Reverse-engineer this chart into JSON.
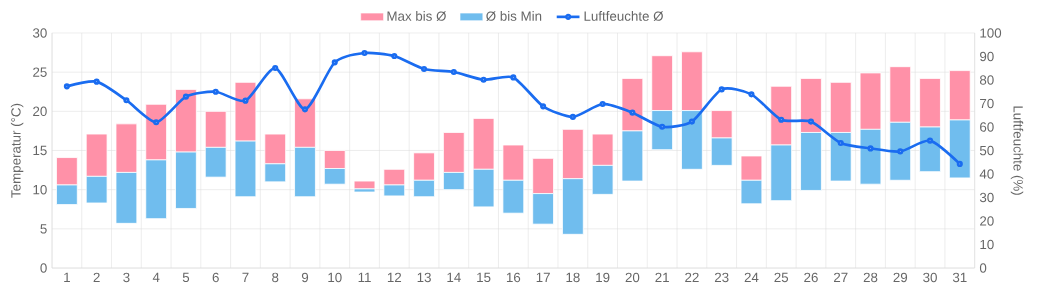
{
  "chart_data": {
    "type": "bar",
    "xlabel": null,
    "ylabel": "Temperatur (°C)",
    "y2label": "Luftfeuchte (%)",
    "categories": [
      "1",
      "2",
      "3",
      "4",
      "5",
      "6",
      "7",
      "8",
      "9",
      "10",
      "11",
      "12",
      "13",
      "14",
      "15",
      "16",
      "17",
      "18",
      "19",
      "20",
      "21",
      "22",
      "23",
      "24",
      "25",
      "26",
      "27",
      "28",
      "29",
      "30",
      "31"
    ],
    "series": [
      {
        "name": "Max bis Ø",
        "color": "#ff91a8",
        "base": [
          10.6,
          11.7,
          12.2,
          13.8,
          14.8,
          15.4,
          16.2,
          13.3,
          15.4,
          12.7,
          10.1,
          10.6,
          11.2,
          12.2,
          12.6,
          11.2,
          9.5,
          11.4,
          13.1,
          17.5,
          20.1,
          20.1,
          16.6,
          11.2,
          15.7,
          17.3,
          17.3,
          17.7,
          18.6,
          18.0,
          18.9
        ],
        "values": [
          3.5,
          5.4,
          6.2,
          7.1,
          8.0,
          4.6,
          7.5,
          3.8,
          6.2,
          2.3,
          1.0,
          2.0,
          3.5,
          5.1,
          6.5,
          4.5,
          4.5,
          6.3,
          4.0,
          6.7,
          7.0,
          7.5,
          3.5,
          3.1,
          7.5,
          6.9,
          6.4,
          7.2,
          7.1,
          6.2,
          6.3
        ]
      },
      {
        "name": "Ø bis Min",
        "color": "#70bdee",
        "base": [
          8.1,
          8.3,
          5.7,
          6.3,
          7.6,
          11.6,
          9.1,
          11.0,
          9.1,
          10.7,
          9.7,
          9.2,
          9.1,
          10.0,
          7.8,
          7.0,
          5.6,
          4.3,
          9.4,
          11.1,
          15.1,
          12.6,
          13.1,
          8.2,
          8.6,
          9.9,
          11.1,
          10.7,
          11.2,
          12.3,
          11.5
        ],
        "values": [
          2.5,
          3.4,
          6.5,
          7.5,
          7.2,
          3.8,
          7.1,
          2.3,
          6.3,
          2.0,
          0.4,
          1.4,
          2.1,
          2.2,
          4.8,
          4.2,
          3.9,
          7.1,
          3.7,
          6.4,
          5.0,
          7.5,
          3.5,
          3.0,
          7.1,
          7.4,
          6.2,
          7.0,
          7.4,
          5.7,
          7.4
        ]
      },
      {
        "name": "Luftfeuchte Ø",
        "type": "line",
        "axis": "y2",
        "color": "#1a6cf0",
        "marker": "circle",
        "line_style": "solid",
        "values": [
          77.3,
          79.3,
          71.4,
          62,
          72.9,
          75,
          71.2,
          85.1,
          67.5,
          87.5,
          91.5,
          90.2,
          84.7,
          83.4,
          80.1,
          81.1,
          68.8,
          64.3,
          69.8,
          66.1,
          60.1,
          62.3,
          76,
          73.9,
          63.1,
          62.3,
          53.2,
          50.9,
          49.6,
          54.2,
          44.3
        ]
      }
    ],
    "ylim": [
      0,
      30
    ],
    "yticks": [
      0,
      5,
      10,
      15,
      20,
      25,
      30
    ],
    "y2lim": [
      0,
      100
    ],
    "y2ticks": [
      0,
      10,
      20,
      30,
      40,
      50,
      60,
      70,
      80,
      90,
      100
    ],
    "grid": true,
    "legend": "top"
  }
}
